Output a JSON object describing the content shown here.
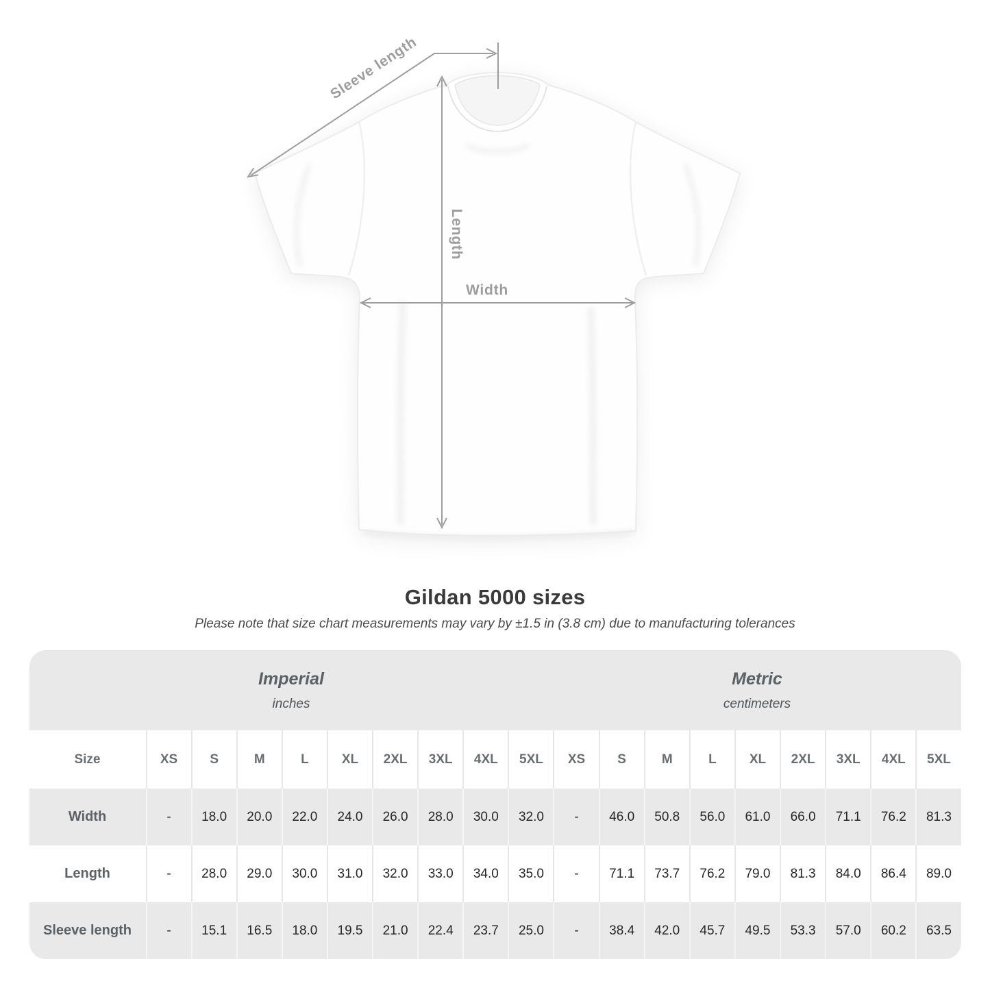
{
  "figure": {
    "sleeve_length_label": "Sleeve length",
    "length_label": "Length",
    "width_label": "Width"
  },
  "heading": {
    "title": "Gildan 5000 sizes",
    "subtitle": "Please note that size chart measurements may vary by ±1.5 in (3.8 cm) due to manufacturing tolerances"
  },
  "table": {
    "size_column_label": "Size",
    "sections": [
      {
        "name": "Imperial",
        "unit": "inches"
      },
      {
        "name": "Metric",
        "unit": "centimeters"
      }
    ],
    "sizes": [
      "XS",
      "S",
      "M",
      "L",
      "XL",
      "2XL",
      "3XL",
      "4XL",
      "5XL"
    ],
    "rows": [
      {
        "label": "Width",
        "imperial": [
          "-",
          "18.0",
          "20.0",
          "22.0",
          "24.0",
          "26.0",
          "28.0",
          "30.0",
          "32.0"
        ],
        "metric": [
          "-",
          "46.0",
          "50.8",
          "56.0",
          "61.0",
          "66.0",
          "71.1",
          "76.2",
          "81.3"
        ]
      },
      {
        "label": "Length",
        "imperial": [
          "-",
          "28.0",
          "29.0",
          "30.0",
          "31.0",
          "32.0",
          "33.0",
          "34.0",
          "35.0"
        ],
        "metric": [
          "-",
          "71.1",
          "73.7",
          "76.2",
          "79.0",
          "81.3",
          "84.0",
          "86.4",
          "89.0"
        ]
      },
      {
        "label": "Sleeve length",
        "imperial": [
          "-",
          "15.1",
          "16.5",
          "18.0",
          "19.5",
          "21.0",
          "22.4",
          "23.7",
          "25.0"
        ],
        "metric": [
          "-",
          "38.4",
          "42.0",
          "45.7",
          "49.5",
          "53.3",
          "57.0",
          "60.2",
          "63.5"
        ]
      }
    ]
  },
  "colors": {
    "annotation_gray": "#9d9d9d",
    "table_band_gray": "#e9e9e9",
    "title_dark": "#3a3a3a"
  },
  "chart_data": {
    "type": "table",
    "title": "Gildan 5000 sizes",
    "note": "Size chart measurements may vary by ±1.5 in (3.8 cm) due to manufacturing tolerances",
    "sections": [
      "Imperial (inches)",
      "Metric (centimeters)"
    ],
    "sizes": [
      "XS",
      "S",
      "M",
      "L",
      "XL",
      "2XL",
      "3XL",
      "4XL",
      "5XL"
    ],
    "measurements": [
      {
        "measure": "Width",
        "imperial_in": [
          null,
          18.0,
          20.0,
          22.0,
          24.0,
          26.0,
          28.0,
          30.0,
          32.0
        ],
        "metric_cm": [
          null,
          46.0,
          50.8,
          56.0,
          61.0,
          66.0,
          71.1,
          76.2,
          81.3
        ]
      },
      {
        "measure": "Length",
        "imperial_in": [
          null,
          28.0,
          29.0,
          30.0,
          31.0,
          32.0,
          33.0,
          34.0,
          35.0
        ],
        "metric_cm": [
          null,
          71.1,
          73.7,
          76.2,
          79.0,
          81.3,
          84.0,
          86.4,
          89.0
        ]
      },
      {
        "measure": "Sleeve length",
        "imperial_in": [
          null,
          15.1,
          16.5,
          18.0,
          19.5,
          21.0,
          22.4,
          23.7,
          25.0
        ],
        "metric_cm": [
          null,
          38.4,
          42.0,
          45.7,
          49.5,
          53.3,
          57.0,
          60.2,
          63.5
        ]
      }
    ]
  }
}
